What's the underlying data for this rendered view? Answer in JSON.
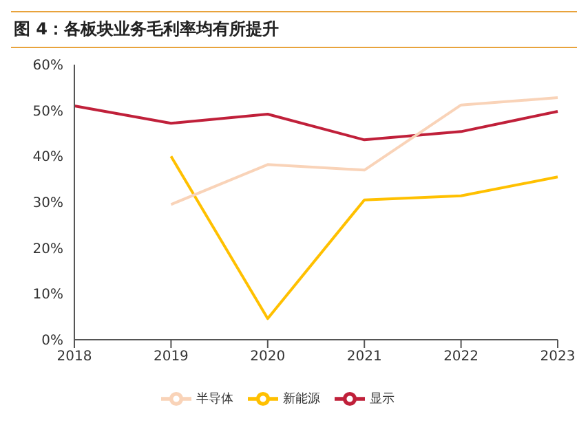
{
  "chart_data": {
    "type": "line",
    "title": "图 4：各板块业务毛利率均有所提升",
    "categories": [
      "2018",
      "2019",
      "2020",
      "2021",
      "2022",
      "2023"
    ],
    "series": [
      {
        "name": "显示",
        "color": "#c0203a",
        "values": [
          51,
          47.2,
          49.2,
          43.6,
          45.4,
          49.8
        ]
      },
      {
        "name": "新能源",
        "color": "#ffc000",
        "values": [
          null,
          40,
          4.6,
          30.5,
          31.4,
          35.5
        ]
      },
      {
        "name": "半导体",
        "color": "#f9d3b8",
        "values": [
          null,
          29.5,
          38.2,
          37,
          51.2,
          52.8
        ]
      }
    ],
    "ylim": [
      0,
      60
    ],
    "yticks": [
      {
        "value": 0,
        "label": "0%"
      },
      {
        "value": 10,
        "label": "10%"
      },
      {
        "value": 20,
        "label": "20%"
      },
      {
        "value": 30,
        "label": "30%"
      },
      {
        "value": 40,
        "label": "40%"
      },
      {
        "value": 50,
        "label": "50%"
      },
      {
        "value": 60,
        "label": "60%"
      }
    ],
    "grid": false,
    "legend": "bottom",
    "marker": "none",
    "line_style": "solid"
  }
}
